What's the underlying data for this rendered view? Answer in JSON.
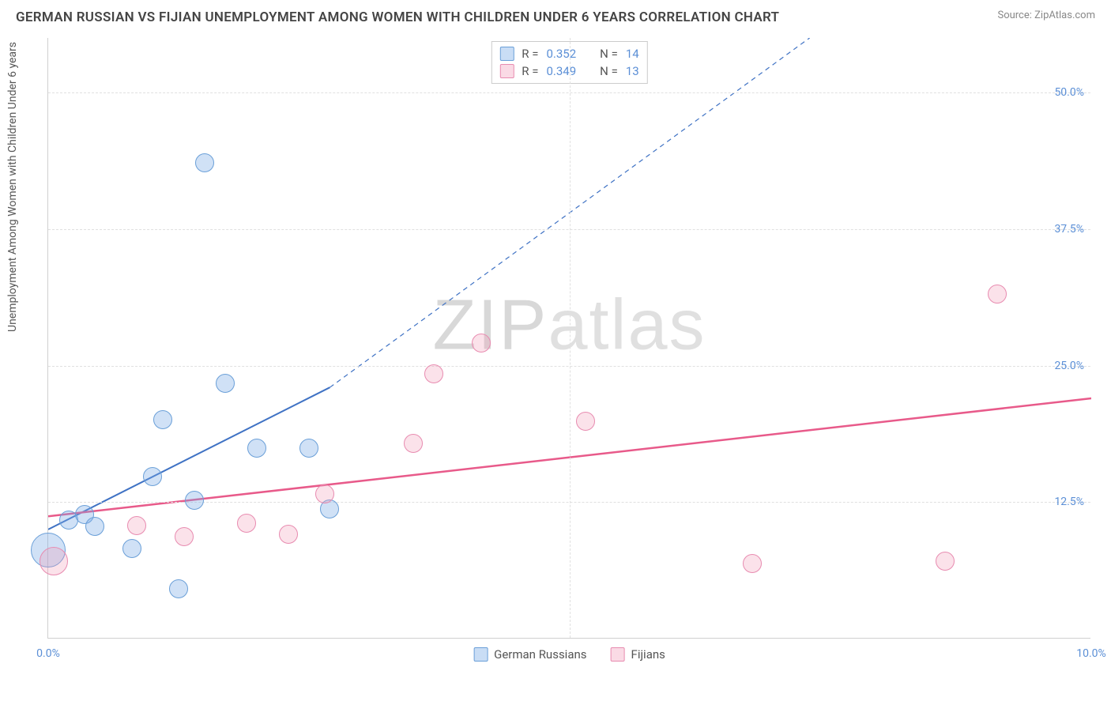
{
  "title": "GERMAN RUSSIAN VS FIJIAN UNEMPLOYMENT AMONG WOMEN WITH CHILDREN UNDER 6 YEARS CORRELATION CHART",
  "source": "Source: ZipAtlas.com",
  "y_axis_label": "Unemployment Among Women with Children Under 6 years",
  "watermark_a": "ZIP",
  "watermark_b": "atlas",
  "chart": {
    "type": "scatter",
    "xlim": [
      0,
      10
    ],
    "ylim": [
      0,
      55
    ],
    "xticks": [
      {
        "v": 0,
        "label": "0.0%"
      },
      {
        "v": 10,
        "label": "10.0%"
      }
    ],
    "yticks": [
      {
        "v": 12.5,
        "label": "12.5%"
      },
      {
        "v": 25,
        "label": "25.0%"
      },
      {
        "v": 37.5,
        "label": "37.5%"
      },
      {
        "v": 50,
        "label": "50.0%"
      }
    ],
    "grid_x": [
      5
    ],
    "background_color": "#ffffff",
    "grid_color": "#e0e0e0",
    "series": [
      {
        "name": "German Russians",
        "color_fill": "rgba(120,170,230,0.35)",
        "color_stroke": "#6a9fd8",
        "R": "0.352",
        "N": "14",
        "trend": {
          "x1": 0,
          "y1": 10,
          "x2": 2.7,
          "y2": 23,
          "dash_x2": 7.3,
          "dash_y2": 55,
          "color": "#3f72c4",
          "width": 2
        },
        "points": [
          {
            "x": 0.0,
            "y": 8.0,
            "r": 22
          },
          {
            "x": 0.2,
            "y": 10.8,
            "r": 12
          },
          {
            "x": 0.35,
            "y": 11.3,
            "r": 12
          },
          {
            "x": 0.45,
            "y": 10.2,
            "r": 12
          },
          {
            "x": 0.8,
            "y": 8.2,
            "r": 12
          },
          {
            "x": 1.0,
            "y": 14.8,
            "r": 12
          },
          {
            "x": 1.1,
            "y": 20.0,
            "r": 12
          },
          {
            "x": 1.25,
            "y": 4.5,
            "r": 12
          },
          {
            "x": 1.4,
            "y": 12.6,
            "r": 12
          },
          {
            "x": 1.5,
            "y": 43.5,
            "r": 12
          },
          {
            "x": 1.7,
            "y": 23.3,
            "r": 12
          },
          {
            "x": 2.0,
            "y": 17.4,
            "r": 12
          },
          {
            "x": 2.5,
            "y": 17.4,
            "r": 12
          },
          {
            "x": 2.7,
            "y": 11.8,
            "r": 12
          }
        ]
      },
      {
        "name": "Fijians",
        "color_fill": "rgba(240,150,180,0.28)",
        "color_stroke": "#e88bb0",
        "R": "0.349",
        "N": "13",
        "trend": {
          "x1": 0,
          "y1": 11.2,
          "x2": 10,
          "y2": 22.0,
          "color": "#e85a8a",
          "width": 2.5
        },
        "points": [
          {
            "x": 0.05,
            "y": 7.0,
            "r": 18
          },
          {
            "x": 0.85,
            "y": 10.3,
            "r": 12
          },
          {
            "x": 1.3,
            "y": 9.3,
            "r": 12
          },
          {
            "x": 1.9,
            "y": 10.5,
            "r": 12
          },
          {
            "x": 2.3,
            "y": 9.5,
            "r": 12
          },
          {
            "x": 2.65,
            "y": 13.2,
            "r": 12
          },
          {
            "x": 3.5,
            "y": 17.8,
            "r": 12
          },
          {
            "x": 3.7,
            "y": 24.2,
            "r": 12
          },
          {
            "x": 4.15,
            "y": 27.0,
            "r": 12
          },
          {
            "x": 5.15,
            "y": 19.8,
            "r": 12
          },
          {
            "x": 6.75,
            "y": 6.8,
            "r": 12
          },
          {
            "x": 8.6,
            "y": 7.0,
            "r": 12
          },
          {
            "x": 9.1,
            "y": 31.5,
            "r": 12
          }
        ]
      }
    ]
  },
  "stats_labels": {
    "R": "R =",
    "N": "N ="
  },
  "legend": {
    "series1": "German Russians",
    "series2": "Fijians"
  }
}
